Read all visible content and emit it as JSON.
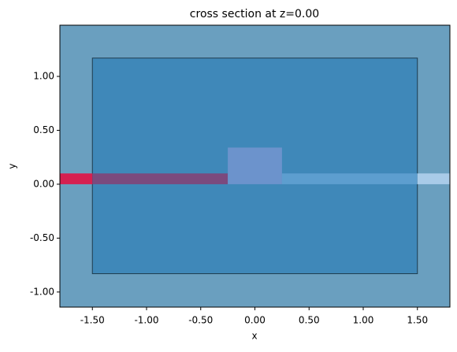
{
  "chart_data": {
    "type": "shapes",
    "title": "cross section at z=0.00",
    "x_label": "x",
    "y_label": "y",
    "xlim": [
      -1.8,
      1.8
    ],
    "ylim": [
      -1.14,
      1.475
    ],
    "xticks": [
      {
        "value": -1.5,
        "label": "-1.50"
      },
      {
        "value": -1,
        "label": "-1.00"
      },
      {
        "value": -0.5,
        "label": "-0.50"
      },
      {
        "value": 0,
        "label": "0.00"
      },
      {
        "value": 0.5,
        "label": "0.50"
      },
      {
        "value": 1,
        "label": "1.00"
      },
      {
        "value": 1.5,
        "label": "1.50"
      }
    ],
    "yticks": [
      {
        "value": -1,
        "label": "-1.00"
      },
      {
        "value": -0.5,
        "label": "-0.50"
      },
      {
        "value": 0,
        "label": "0.00"
      },
      {
        "value": 0.5,
        "label": "0.50"
      },
      {
        "value": 1,
        "label": "1.00"
      }
    ],
    "background": "#6a9fbf",
    "shapes": [
      {
        "x": [
          -1.5,
          1.5
        ],
        "y": [
          -0.83,
          1.17
        ],
        "color": "#3f88b9",
        "edgecolor": "#1f3b4d"
      },
      {
        "x": [
          -1.8,
          -1.5
        ],
        "y": [
          0,
          0.1
        ],
        "color": "#d62050"
      },
      {
        "x": [
          -1.5,
          -0.25
        ],
        "y": [
          0,
          0.1
        ],
        "color": "#7b4a7e"
      },
      {
        "x": [
          -0.25,
          0.25
        ],
        "y": [
          0,
          0.34
        ],
        "color": "#6c93cc"
      },
      {
        "x": [
          0.25,
          1.5
        ],
        "y": [
          0,
          0.1
        ],
        "color": "#5d9ecf"
      },
      {
        "x": [
          1.5,
          1.8
        ],
        "y": [
          0,
          0.1
        ],
        "color": "#a9cbe8"
      }
    ]
  }
}
